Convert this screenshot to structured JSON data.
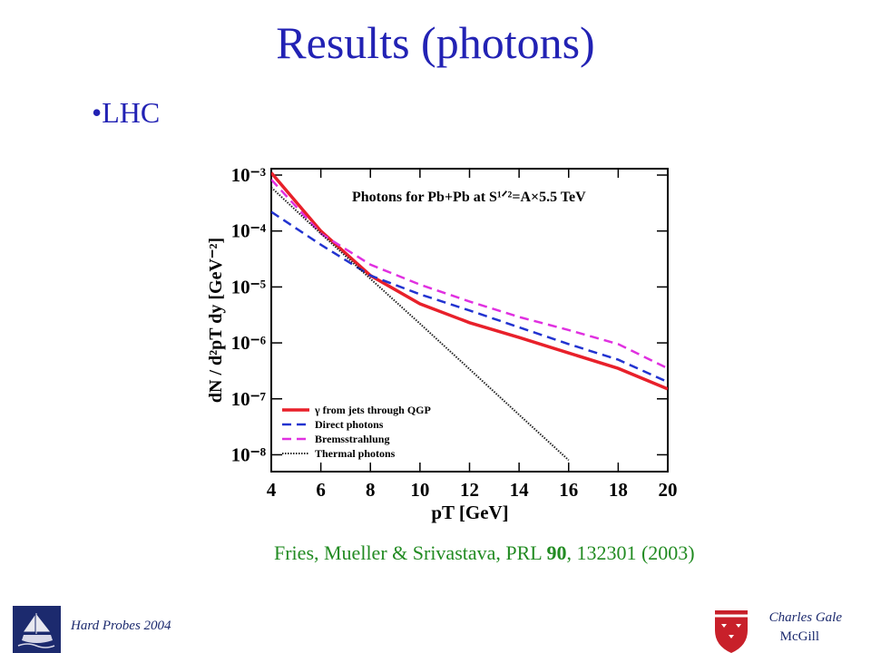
{
  "title": "Results (photons)",
  "bullet": "•LHC",
  "citation": {
    "before": "Fries, Mueller & Srivastava, PRL ",
    "volume": "90",
    "after": ", 132301 (2003)"
  },
  "footer": {
    "event": "Hard Probes 2004",
    "author": "Charles Gale",
    "institution": "McGill"
  },
  "chart_data": {
    "type": "line",
    "title": "Photons for Pb+Pb at S¹ᐟ²=A×5.5 TeV",
    "x_label": "pT [GeV]",
    "y_label": "dN / d²pT dy [GeV⁻²]",
    "log_y": true,
    "legend": "lower left",
    "x": [
      4,
      6,
      8,
      10,
      12,
      14,
      16,
      18,
      20
    ],
    "xlim": [
      4,
      20
    ],
    "xticks": [
      4,
      6,
      8,
      10,
      12,
      14,
      16,
      18,
      20
    ],
    "ylim": [
      5e-09,
      0.0013
    ],
    "yticks": [
      {
        "value": 0.001,
        "label": "10⁻³"
      },
      {
        "value": 0.0001,
        "label": "10⁻⁴"
      },
      {
        "value": 1e-05,
        "label": "10⁻⁵"
      },
      {
        "value": 1e-06,
        "label": "10⁻⁶"
      },
      {
        "value": 1e-07,
        "label": "10⁻⁷"
      },
      {
        "value": 1e-08,
        "label": "10⁻⁸"
      }
    ],
    "series": [
      {
        "name": "γ from jets through QGP",
        "color": "#e8202a",
        "style": "solid",
        "values": [
          0.0011,
          0.0001,
          1.6e-05,
          5e-06,
          2.3e-06,
          1.25e-06,
          6.6e-07,
          3.5e-07,
          1.5e-07
        ]
      },
      {
        "name": "Direct photons",
        "color": "#2233d0",
        "style": "dashed",
        "values": [
          0.00022,
          5.7e-05,
          1.6e-05,
          7.4e-06,
          3.8e-06,
          1.9e-06,
          9.5e-07,
          5e-07,
          2e-07
        ]
      },
      {
        "name": "Bremsstrahlung",
        "color": "#e030e0",
        "style": "dashed",
        "values": [
          0.00083,
          9e-05,
          2.5e-05,
          1.1e-05,
          5.5e-06,
          2.9e-06,
          1.7e-06,
          9.5e-07,
          3.5e-07
        ]
      },
      {
        "name": "Thermal photons",
        "color": "#222222",
        "style": "dotted",
        "values": [
          0.0006,
          9e-05,
          1.4e-05,
          2.2e-06,
          3.4e-07,
          5.2e-08,
          8e-09,
          null,
          null
        ]
      }
    ]
  }
}
